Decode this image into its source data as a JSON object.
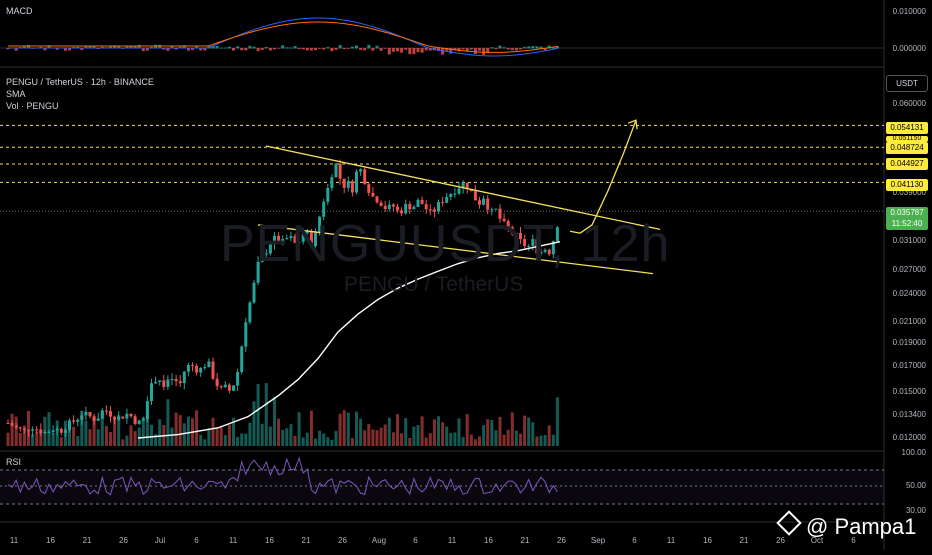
{
  "macd": {
    "label": "MACD",
    "axis": [
      "0.010000",
      "0.000000"
    ]
  },
  "main": {
    "title": "PENGU / TetherUS · 12h · BINANCE",
    "sma_label": "SMA",
    "vol_label": "Vol · PENGU",
    "watermark_big": "PENGUUSDT, 12h",
    "watermark_small": "PENGU / TetherUS",
    "currency": "USDT",
    "axis": [
      "0.060000",
      "0.039000",
      "0.031000",
      "0.027000",
      "0.024000",
      "0.021000",
      "0.019000",
      "0.017000",
      "0.015000",
      "0.013400",
      "0.012000"
    ],
    "levels": [
      "0.054131",
      "0.048724",
      "0.044927",
      "0.041130"
    ],
    "hidden_tag": "0.051150",
    "price": "0.035787",
    "countdown": "11:52:40",
    "colors": {
      "up": "#26a69a",
      "down": "#ef5350",
      "pattern": "#f5e05a",
      "sma": "#ffffff",
      "price_tag": "#4caf50",
      "level_tag": "#ffeb3b"
    }
  },
  "rsi": {
    "label": "RSI",
    "axis": [
      "100.00",
      "50.00",
      "30.00"
    ]
  },
  "x_axis": [
    "11",
    "16",
    "21",
    "26",
    "Jul",
    "6",
    "11",
    "16",
    "21",
    "26",
    "Aug",
    "6",
    "11",
    "16",
    "21",
    "26",
    "Sep",
    "6",
    "11",
    "16",
    "21",
    "26",
    "Oct",
    "6"
  ],
  "brand": {
    "handle": "@ Pampa1",
    "icon": "binance-diamond-icon"
  },
  "chart_data": {
    "type": "candlestick",
    "symbol": "PENGU / TetherUS",
    "interval": "12h",
    "exchange": "BINANCE",
    "scale": "log",
    "ylim": [
      0.0115,
      0.065
    ],
    "last_price": 0.035787,
    "horizontal_levels": [
      0.054131,
      0.048724,
      0.044927,
      0.04113
    ],
    "close_path": [
      [
        0,
        0.0129
      ],
      [
        8,
        0.0126
      ],
      [
        16,
        0.0124
      ],
      [
        24,
        0.0127
      ],
      [
        30,
        0.0125
      ],
      [
        38,
        0.0123
      ],
      [
        46,
        0.0126
      ],
      [
        52,
        0.0124
      ],
      [
        60,
        0.0128
      ],
      [
        68,
        0.0131
      ],
      [
        74,
        0.0135
      ],
      [
        82,
        0.0133
      ],
      [
        88,
        0.0131
      ],
      [
        96,
        0.0138
      ],
      [
        104,
        0.0134
      ],
      [
        112,
        0.0132
      ],
      [
        118,
        0.0135
      ],
      [
        124,
        0.0133
      ],
      [
        130,
        0.0128
      ],
      [
        136,
        0.0134
      ],
      [
        140,
        0.0148
      ],
      [
        146,
        0.0158
      ],
      [
        150,
        0.0162
      ],
      [
        156,
        0.0153
      ],
      [
        160,
        0.0157
      ],
      [
        166,
        0.0161
      ],
      [
        170,
        0.0155
      ],
      [
        174,
        0.0157
      ],
      [
        178,
        0.0172
      ],
      [
        182,
        0.0168
      ],
      [
        186,
        0.0171
      ],
      [
        190,
        0.0165
      ],
      [
        196,
        0.017
      ],
      [
        200,
        0.0173
      ],
      [
        204,
        0.0163
      ],
      [
        208,
        0.0157
      ],
      [
        212,
        0.015
      ],
      [
        216,
        0.0155
      ],
      [
        220,
        0.0149
      ],
      [
        224,
        0.0154
      ],
      [
        228,
        0.0158
      ],
      [
        232,
        0.0176
      ],
      [
        236,
        0.0202
      ],
      [
        240,
        0.0225
      ],
      [
        244,
        0.0236
      ],
      [
        248,
        0.0267
      ],
      [
        252,
        0.0285
      ],
      [
        256,
        0.029
      ],
      [
        260,
        0.03
      ],
      [
        264,
        0.0312
      ],
      [
        268,
        0.0314
      ],
      [
        272,
        0.0306
      ],
      [
        276,
        0.0309
      ],
      [
        280,
        0.0316
      ],
      [
        284,
        0.0313
      ],
      [
        288,
        0.0304
      ],
      [
        292,
        0.0312
      ],
      [
        296,
        0.0325
      ],
      [
        300,
        0.032
      ],
      [
        304,
        0.0305
      ],
      [
        308,
        0.0322
      ],
      [
        312,
        0.0352
      ],
      [
        316,
        0.038
      ],
      [
        320,
        0.04
      ],
      [
        324,
        0.043
      ],
      [
        328,
        0.0448
      ],
      [
        332,
        0.042
      ],
      [
        336,
        0.0405
      ],
      [
        340,
        0.041
      ],
      [
        344,
        0.0395
      ],
      [
        348,
        0.043
      ],
      [
        352,
        0.044
      ],
      [
        356,
        0.0418
      ],
      [
        360,
        0.04
      ],
      [
        364,
        0.0385
      ],
      [
        368,
        0.038
      ],
      [
        372,
        0.0375
      ],
      [
        376,
        0.0365
      ],
      [
        380,
        0.0362
      ],
      [
        384,
        0.037
      ],
      [
        388,
        0.036
      ],
      [
        392,
        0.0355
      ],
      [
        396,
        0.0365
      ],
      [
        400,
        0.037
      ],
      [
        404,
        0.0362
      ],
      [
        408,
        0.0372
      ],
      [
        412,
        0.0378
      ],
      [
        416,
        0.0365
      ],
      [
        420,
        0.036
      ],
      [
        424,
        0.0352
      ],
      [
        428,
        0.0365
      ],
      [
        432,
        0.0372
      ],
      [
        436,
        0.038
      ],
      [
        440,
        0.0388
      ],
      [
        444,
        0.0392
      ],
      [
        448,
        0.0398
      ],
      [
        452,
        0.0405
      ],
      [
        456,
        0.041
      ],
      [
        460,
        0.0402
      ],
      [
        464,
        0.039
      ],
      [
        468,
        0.0378
      ],
      [
        472,
        0.0372
      ],
      [
        476,
        0.0385
      ],
      [
        480,
        0.0365
      ],
      [
        484,
        0.0355
      ],
      [
        488,
        0.036
      ],
      [
        492,
        0.0345
      ],
      [
        496,
        0.0336
      ],
      [
        500,
        0.033
      ],
      [
        504,
        0.0322
      ],
      [
        508,
        0.0318
      ],
      [
        512,
        0.031
      ],
      [
        516,
        0.0305
      ],
      [
        520,
        0.03
      ],
      [
        524,
        0.0312
      ],
      [
        528,
        0.0298
      ],
      [
        532,
        0.0292
      ],
      [
        536,
        0.0302
      ],
      [
        540,
        0.029
      ],
      [
        544,
        0.0305
      ],
      [
        548,
        0.0325
      ],
      [
        552,
        0.0358
      ]
    ],
    "sma_path": [
      [
        130,
        0.012
      ],
      [
        170,
        0.0122
      ],
      [
        210,
        0.0126
      ],
      [
        240,
        0.0133
      ],
      [
        270,
        0.0147
      ],
      [
        290,
        0.0159
      ],
      [
        310,
        0.0176
      ],
      [
        330,
        0.02
      ],
      [
        350,
        0.0218
      ],
      [
        370,
        0.0234
      ],
      [
        390,
        0.0247
      ],
      [
        410,
        0.0258
      ],
      [
        430,
        0.0268
      ],
      [
        450,
        0.0278
      ],
      [
        470,
        0.0286
      ],
      [
        490,
        0.0292
      ],
      [
        510,
        0.0296
      ],
      [
        530,
        0.0302
      ],
      [
        552,
        0.0309
      ]
    ],
    "trend_upper": [
      [
        258,
        0.049
      ],
      [
        652,
        0.0328
      ]
    ],
    "trend_lower": [
      [
        250,
        0.0335
      ],
      [
        645,
        0.0265
      ]
    ],
    "projection": [
      [
        562,
        0.0325
      ],
      [
        572,
        0.0322
      ],
      [
        584,
        0.0335
      ],
      [
        600,
        0.0395
      ],
      [
        615,
        0.047
      ],
      [
        628,
        0.0555
      ]
    ]
  }
}
